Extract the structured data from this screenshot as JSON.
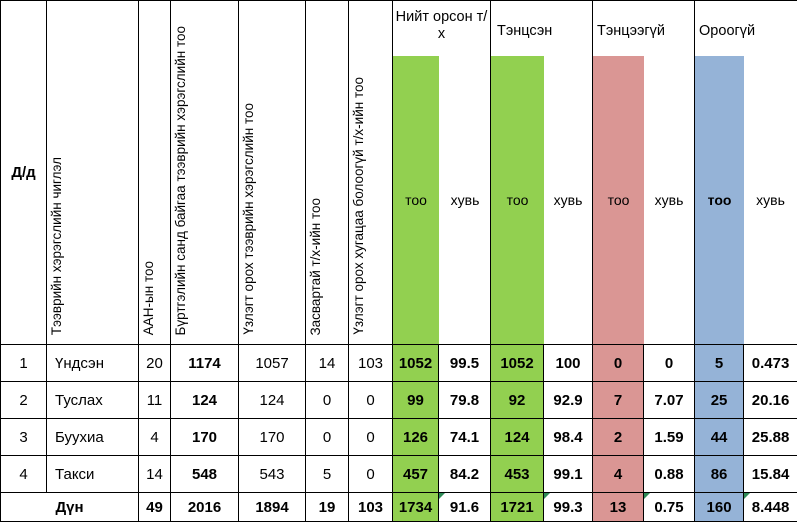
{
  "header": {
    "dd": "Д/д",
    "vehicle_type": "Тээврийн хэрэгслийн чиглэл",
    "aan_count": "ААН-ын тоо",
    "registered": "Бүртгэлийн санд байгаа тээврийн хэрэгслийн тоо",
    "inspected": "Үзлэгт орох тээврийн хэрэгслийн тоо",
    "repair": "Засвартай т/х-ийн тоо",
    "overdue": "Үзлэгт орох хугацаа болоогүй т/х-ийн тоо",
    "total_group": "Нийт орсон т/х",
    "passed_group": "Тэнцсэн",
    "failed_group": "Тэнцээгүй",
    "absent_group": "Ороогүй",
    "too": "тоо",
    "huv": "хувь"
  },
  "rows": [
    {
      "no": "1",
      "name": "Үндсэн",
      "aan": "20",
      "registered": "1174",
      "inspected": "1057",
      "repair": "14",
      "overdue": "103",
      "total_too": "1052",
      "total_huv": "99.5",
      "passed_too": "1052",
      "passed_huv": "100",
      "failed_too": "0",
      "failed_huv": "0",
      "absent_too": "5",
      "absent_huv": "0.473"
    },
    {
      "no": "2",
      "name": "Туслах",
      "aan": "11",
      "registered": "124",
      "inspected": "124",
      "repair": "0",
      "overdue": "0",
      "total_too": "99",
      "total_huv": "79.8",
      "passed_too": "92",
      "passed_huv": "92.9",
      "failed_too": "7",
      "failed_huv": "7.07",
      "absent_too": "25",
      "absent_huv": "20.16"
    },
    {
      "no": "3",
      "name": "Буухиа",
      "aan": "4",
      "registered": "170",
      "inspected": "170",
      "repair": "0",
      "overdue": "0",
      "total_too": "126",
      "total_huv": "74.1",
      "passed_too": "124",
      "passed_huv": "98.4",
      "failed_too": "2",
      "failed_huv": "1.59",
      "absent_too": "44",
      "absent_huv": "25.88"
    },
    {
      "no": "4",
      "name": "Такси",
      "aan": "14",
      "registered": "548",
      "inspected": "543",
      "repair": "5",
      "overdue": "0",
      "total_too": "457",
      "total_huv": "84.2",
      "passed_too": "453",
      "passed_huv": "99.1",
      "failed_too": "4",
      "failed_huv": "0.88",
      "absent_too": "86",
      "absent_huv": "15.84"
    }
  ],
  "total": {
    "name": "Дүн",
    "aan": "49",
    "registered": "2016",
    "inspected": "1894",
    "repair": "19",
    "overdue": "103",
    "total_too": "1734",
    "total_huv": "91.6",
    "passed_too": "1721",
    "passed_huv": "99.3",
    "failed_too": "13",
    "failed_huv": "0.75",
    "absent_too": "160",
    "absent_huv": "8.448"
  },
  "colors": {
    "green": "#92d050",
    "red": "#da9694",
    "blue": "#95b3d7"
  }
}
